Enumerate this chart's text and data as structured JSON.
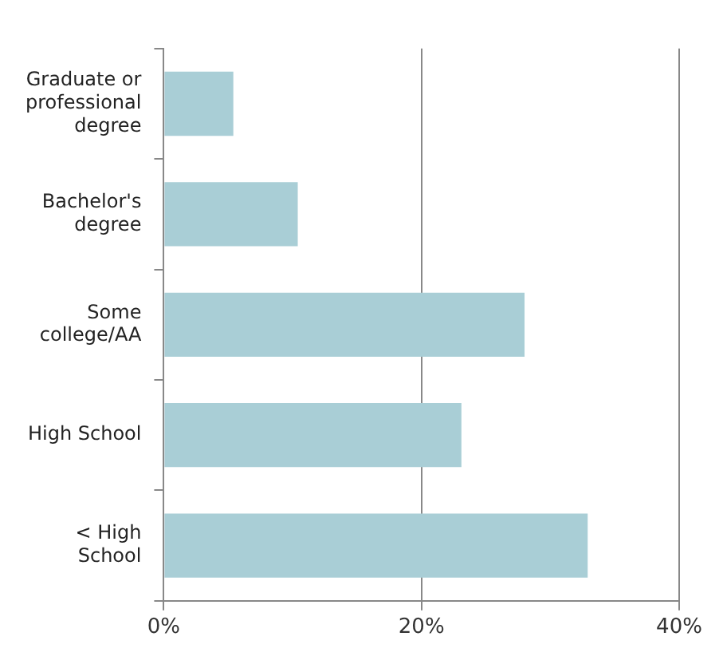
{
  "chart_data": {
    "type": "bar",
    "orientation": "horizontal",
    "categories": [
      "Graduate or professional degree",
      "Bachelor's degree",
      "Some college/AA",
      "High School",
      "< High School"
    ],
    "values": [
      5.4,
      10.4,
      28.0,
      23.1,
      32.9
    ],
    "color": "#a9ced6",
    "xlim": [
      0,
      40
    ],
    "xticks": [
      {
        "value": 0,
        "label": "0%"
      },
      {
        "value": 20,
        "label": "20%"
      },
      {
        "value": 40,
        "label": "40%"
      }
    ],
    "grid": "x",
    "legend": false
  }
}
